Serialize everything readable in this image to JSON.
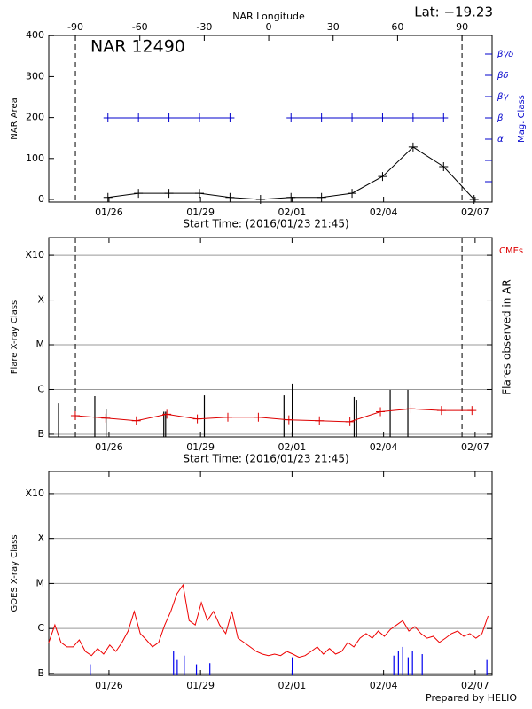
{
  "footer": "Prepared by HELIO",
  "chart_data": [
    {
      "type": "line",
      "title": "NAR 12490",
      "subtitle": "Lat: −19.23",
      "xlabel": "Start Time: (2016/01/23 21:45)",
      "x2label": "NAR Longitude",
      "ylabel": "NAR Area",
      "y2label": "Mag. Class",
      "xlim": [
        0.12,
        14.65
      ],
      "xticks": [
        {
          "value": 2.094,
          "label": "01/26"
        },
        {
          "value": 5.094,
          "label": "01/29"
        },
        {
          "value": 8.094,
          "label": "02/01"
        },
        {
          "value": 11.094,
          "label": "02/04"
        },
        {
          "value": 14.094,
          "label": "02/07"
        }
      ],
      "x2lim": [
        -102.4,
        104.0
      ],
      "x2ticks": [
        -90,
        -60,
        -30,
        0,
        30,
        60,
        90
      ],
      "ylim": [
        -6.5,
        400.5
      ],
      "yticks": [
        0,
        100,
        200,
        300,
        400
      ],
      "y2categories": [
        "α",
        "β",
        "βγ",
        "βδ",
        "βγδ"
      ],
      "limb_lines": true,
      "grid": false,
      "log_y": false,
      "series": [
        {
          "color": "#000000",
          "style": "line",
          "markers": true,
          "x": [
            2.06,
            3.06,
            4.06,
            5.06,
            6.06,
            7.06,
            8.06,
            9.06,
            10.06,
            11.06,
            12.06,
            13.06,
            14.06
          ],
          "values": [
            5,
            15,
            15,
            15,
            5,
            0,
            5,
            5,
            15,
            56,
            128,
            80,
            0
          ]
        },
        {
          "color": "#0000cc",
          "style": "line",
          "markers": true,
          "axis": "y2",
          "x": [
            2.06,
            3.06,
            4.06,
            5.06,
            6.06,
            7.06,
            8.06,
            9.06,
            10.06,
            11.06,
            12.06,
            13.06,
            14.06
          ],
          "values": [
            "β",
            "β",
            "β",
            "β",
            "β",
            null,
            "β",
            "β",
            "β",
            "β",
            "β",
            "β",
            null
          ]
        }
      ]
    },
    {
      "type": "line",
      "xlabel": "Start Time: (2016/01/23 21:45)",
      "ylabel": "Flare X-ray Class",
      "y2label": "Flares observed in AR",
      "annotation": "CMEs",
      "xlim": [
        0.12,
        14.65
      ],
      "xticks": [
        {
          "value": 2.094,
          "label": "01/26"
        },
        {
          "value": 5.094,
          "label": "01/29"
        },
        {
          "value": 8.094,
          "label": "02/01"
        },
        {
          "value": 11.094,
          "label": "02/04"
        },
        {
          "value": 14.094,
          "label": "02/07"
        }
      ],
      "ylim": [
        8.7e-08,
        0.0025
      ],
      "yticks": [
        {
          "value": 1e-07,
          "label": "B"
        },
        {
          "value": 1e-06,
          "label": "C"
        },
        {
          "value": 1e-05,
          "label": "M"
        },
        {
          "value": 0.0001,
          "label": "X"
        },
        {
          "value": 0.001,
          "label": "X10"
        }
      ],
      "limb_lines": true,
      "grid": true,
      "log_y": true,
      "series": [
        {
          "color": "#000000",
          "style": "stems",
          "x": [
            0.44,
            1.63,
            2.0,
            3.89,
            3.95,
            5.22,
            7.83,
            8.1,
            10.13,
            10.21,
            11.31,
            11.89
          ],
          "values": [
            4.9e-07,
            7.1e-07,
            3.6e-07,
            3.2e-07,
            3.2e-07,
            7.4e-07,
            7.4e-07,
            1.35e-06,
            6.8e-07,
            5.9e-07,
            9.8e-07,
            9.8e-07
          ]
        },
        {
          "color": "#dd0000",
          "style": "line",
          "markers": true,
          "x": [
            0.99,
            1.99,
            2.99,
            3.99,
            4.99,
            5.99,
            6.99,
            7.99,
            8.99,
            9.99,
            10.99,
            11.99,
            12.99,
            13.99
          ],
          "values": [
            2.6e-07,
            2.3e-07,
            2e-07,
            2.8e-07,
            2.2e-07,
            2.4e-07,
            2.4e-07,
            2.1e-07,
            2e-07,
            1.9e-07,
            3.2e-07,
            3.7e-07,
            3.4e-07,
            3.4e-07
          ]
        }
      ]
    },
    {
      "type": "line",
      "ylabel": "GOES X-ray Class",
      "xlim": [
        0.12,
        14.65
      ],
      "xticks": [
        {
          "value": 2.094,
          "label": "01/26"
        },
        {
          "value": 5.094,
          "label": "01/29"
        },
        {
          "value": 8.094,
          "label": "02/01"
        },
        {
          "value": 11.094,
          "label": "02/04"
        },
        {
          "value": 14.094,
          "label": "02/07"
        }
      ],
      "ylim": [
        9.1e-08,
        0.0031
      ],
      "yticks": [
        {
          "value": 1e-07,
          "label": "B"
        },
        {
          "value": 1e-06,
          "label": "C"
        },
        {
          "value": 1e-05,
          "label": "M"
        },
        {
          "value": 0.0001,
          "label": "X"
        },
        {
          "value": 0.001,
          "label": "X10"
        }
      ],
      "limb_lines": false,
      "grid": true,
      "log_y": true,
      "series": [
        {
          "color": "#ee0000",
          "style": "line",
          "markers": false,
          "x": [
            0.12,
            0.32,
            0.52,
            0.72,
            0.92,
            1.12,
            1.32,
            1.52,
            1.72,
            1.92,
            2.12,
            2.32,
            2.52,
            2.72,
            2.92,
            3.12,
            3.32,
            3.52,
            3.72,
            3.92,
            4.12,
            4.32,
            4.52,
            4.72,
            4.92,
            5.12,
            5.32,
            5.52,
            5.72,
            5.92,
            6.12,
            6.32,
            6.52,
            6.72,
            6.92,
            7.12,
            7.32,
            7.52,
            7.72,
            7.92,
            8.12,
            8.32,
            8.52,
            8.72,
            8.92,
            9.12,
            9.32,
            9.52,
            9.72,
            9.92,
            10.12,
            10.32,
            10.52,
            10.72,
            10.92,
            11.12,
            11.32,
            11.52,
            11.72,
            11.92,
            12.12,
            12.32,
            12.52,
            12.72,
            12.92,
            13.12,
            13.32,
            13.52,
            13.72,
            13.92,
            14.12,
            14.32,
            14.52
          ],
          "values": [
            4.9e-07,
            1.2e-06,
            4.9e-07,
            3.9e-07,
            3.9e-07,
            5.6e-07,
            3.1e-07,
            2.5e-07,
            3.6e-07,
            2.7e-07,
            4.3e-07,
            3.1e-07,
            4.9e-07,
            8.8e-07,
            2.4e-06,
            7.7e-07,
            5.6e-07,
            3.9e-07,
            4.9e-07,
            1.2e-06,
            2.4e-06,
            5.9e-06,
            9.3e-06,
            1.5e-06,
            1.2e-06,
            3.8e-06,
            1.5e-06,
            2.4e-06,
            1.2e-06,
            7.7e-07,
            2.4e-06,
            6.1e-07,
            4.9e-07,
            3.9e-07,
            3.1e-07,
            2.7e-07,
            2.5e-07,
            2.7e-07,
            2.5e-07,
            3.1e-07,
            2.7e-07,
            2.3e-07,
            2.5e-07,
            3.1e-07,
            3.9e-07,
            2.7e-07,
            3.6e-07,
            2.7e-07,
            3.1e-07,
            4.9e-07,
            3.9e-07,
            6.1e-07,
            7.7e-07,
            6.1e-07,
            8.8e-07,
            6.7e-07,
            9.6e-07,
            1.2e-06,
            1.5e-06,
            8.8e-07,
            1.1e-06,
            7.7e-07,
            6.1e-07,
            6.7e-07,
            4.9e-07,
            6.1e-07,
            7.7e-07,
            8.8e-07,
            6.7e-07,
            7.7e-07,
            6.1e-07,
            7.7e-07,
            1.9e-06
          ]
        },
        {
          "color": "#0000ee",
          "style": "stems",
          "x": [
            1.48,
            4.21,
            4.33,
            4.56,
            4.96,
            5.4,
            8.1,
            11.43,
            11.58,
            11.72,
            11.9,
            12.04,
            12.36,
            14.48
          ],
          "values": [
            1.6e-07,
            3.1e-07,
            2e-07,
            2.5e-07,
            1.6e-07,
            1.7e-07,
            2.3e-07,
            2.5e-07,
            3.1e-07,
            3.9e-07,
            2.3e-07,
            3.1e-07,
            2.7e-07,
            2e-07
          ]
        }
      ]
    }
  ]
}
